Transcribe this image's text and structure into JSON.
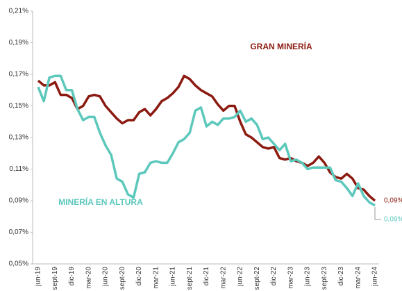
{
  "chart_data": {
    "type": "line",
    "categories": [
      "jun-19",
      null,
      null,
      "sept-19",
      null,
      null,
      "dic-19",
      null,
      null,
      "mar-20",
      null,
      null,
      "jun-20",
      null,
      null,
      "sept-20",
      null,
      null,
      "dic-20",
      null,
      null,
      "mar-21",
      null,
      null,
      "jun-21",
      null,
      null,
      "sept-21",
      null,
      null,
      "dic-21",
      null,
      null,
      "mar-22",
      null,
      null,
      "jun-22",
      null,
      null,
      "sept-22",
      null,
      null,
      "dic-22",
      null,
      null,
      "mar-23",
      null,
      null,
      "jun-23",
      null,
      null,
      "sept-23",
      null,
      null,
      "dic-23",
      null,
      null,
      "mar-24",
      null,
      null,
      "jun-24"
    ],
    "series": [
      {
        "name": "GRAN MINERÍA",
        "color": "#8b1a10",
        "values": [
          0.166,
          0.163,
          0.163,
          0.165,
          0.157,
          0.157,
          0.155,
          0.148,
          0.15,
          0.156,
          0.157,
          0.156,
          0.15,
          0.146,
          0.142,
          0.139,
          0.141,
          0.141,
          0.146,
          0.148,
          0.144,
          0.148,
          0.153,
          0.155,
          0.158,
          0.162,
          0.169,
          0.167,
          0.163,
          0.16,
          0.158,
          0.156,
          0.151,
          0.147,
          0.15,
          0.15,
          0.14,
          0.132,
          0.13,
          0.127,
          0.124,
          0.123,
          0.124,
          0.117,
          0.116,
          0.117,
          0.115,
          0.114,
          0.112,
          0.114,
          0.118,
          0.114,
          0.108,
          0.105,
          0.104,
          0.107,
          0.104,
          0.098,
          0.097,
          0.093,
          0.09
        ],
        "value_labels": [
          null,
          null,
          null,
          null,
          null,
          null,
          null,
          null,
          null,
          null,
          null,
          null,
          null,
          null,
          null,
          null,
          null,
          null,
          null,
          null,
          null,
          null,
          null,
          null,
          null,
          null,
          null,
          null,
          null,
          null,
          null,
          null,
          null,
          null,
          null,
          null,
          null,
          null,
          null,
          null,
          null,
          null,
          null,
          null,
          null,
          null,
          null,
          null,
          null,
          null,
          null,
          null,
          null,
          null,
          null,
          null,
          null,
          null,
          null,
          null,
          "0,09%"
        ]
      },
      {
        "name": "MINERÍA EN ALTURA",
        "color": "#5cc8bc",
        "values": [
          0.162,
          0.153,
          0.168,
          0.169,
          0.169,
          0.16,
          0.16,
          0.148,
          0.141,
          0.143,
          0.143,
          0.133,
          0.125,
          0.119,
          0.104,
          0.102,
          0.094,
          0.092,
          0.107,
          0.108,
          0.114,
          0.115,
          0.114,
          0.114,
          0.12,
          0.127,
          0.129,
          0.133,
          0.147,
          0.149,
          0.137,
          0.14,
          0.138,
          0.142,
          0.142,
          0.143,
          0.147,
          0.14,
          0.142,
          0.138,
          0.129,
          0.13,
          0.126,
          0.122,
          0.126,
          0.115,
          0.116,
          0.114,
          0.11,
          0.111,
          0.111,
          0.111,
          0.111,
          0.103,
          0.102,
          0.098,
          0.093,
          0.101,
          0.093,
          0.089,
          0.087
        ],
        "value_labels": [
          null,
          null,
          null,
          null,
          null,
          null,
          null,
          null,
          null,
          null,
          null,
          null,
          null,
          null,
          null,
          null,
          null,
          null,
          null,
          null,
          null,
          null,
          null,
          null,
          null,
          null,
          null,
          null,
          null,
          null,
          null,
          null,
          null,
          null,
          null,
          null,
          null,
          null,
          null,
          null,
          null,
          null,
          null,
          null,
          null,
          null,
          null,
          null,
          null,
          null,
          null,
          null,
          null,
          null,
          null,
          null,
          null,
          null,
          null,
          null,
          "0,09%"
        ]
      }
    ],
    "ylim": [
      0.05,
      0.21
    ],
    "yticks": [
      {
        "value": 0.05,
        "label": "0,05%"
      },
      {
        "value": 0.07,
        "label": "0,07%"
      },
      {
        "value": 0.09,
        "label": "0,09%"
      },
      {
        "value": 0.11,
        "label": "0,11%"
      },
      {
        "value": 0.13,
        "label": "0,13%"
      },
      {
        "value": 0.15,
        "label": "0,15%"
      },
      {
        "value": 0.17,
        "label": "0,17%"
      },
      {
        "value": 0.19,
        "label": "0,19%"
      },
      {
        "value": 0.21,
        "label": "0,21%"
      }
    ],
    "grid": false
  }
}
